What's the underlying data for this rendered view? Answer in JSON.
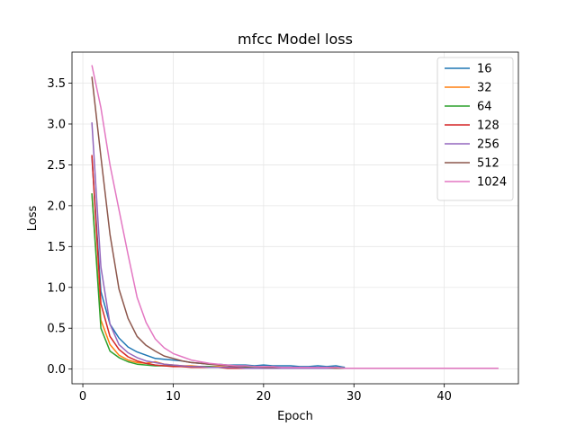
{
  "chart_data": {
    "type": "line",
    "title": "mfcc Model loss",
    "xlabel": "Epoch",
    "ylabel": "Loss",
    "xlim": [
      -1.2,
      48.2
    ],
    "ylim": [
      -0.18,
      3.88
    ],
    "xticks": [
      0,
      10,
      20,
      30,
      40
    ],
    "yticks": [
      0.0,
      0.5,
      1.0,
      1.5,
      2.0,
      2.5,
      3.0,
      3.5
    ],
    "xtick_labels": [
      "0",
      "10",
      "20",
      "30",
      "40"
    ],
    "ytick_labels": [
      "0.0",
      "0.5",
      "1.0",
      "1.5",
      "2.0",
      "2.5",
      "3.0",
      "3.5"
    ],
    "grid": true,
    "legend_position": "top-right",
    "series": [
      {
        "name": "16",
        "color": "#1f77b4",
        "x": [
          1,
          2,
          3,
          4,
          5,
          6,
          7,
          8,
          9,
          10,
          11,
          12,
          13,
          14,
          15,
          16,
          17,
          18,
          19,
          20,
          21,
          22,
          23,
          24,
          25,
          26,
          27,
          28,
          29
        ],
        "y": [
          2.6,
          0.95,
          0.55,
          0.38,
          0.27,
          0.21,
          0.17,
          0.13,
          0.12,
          0.11,
          0.1,
          0.08,
          0.07,
          0.06,
          0.06,
          0.05,
          0.05,
          0.05,
          0.04,
          0.05,
          0.04,
          0.04,
          0.04,
          0.03,
          0.03,
          0.04,
          0.03,
          0.04,
          0.02
        ]
      },
      {
        "name": "32",
        "color": "#ff7f0e",
        "x": [
          1,
          2,
          3,
          4,
          5,
          6,
          7,
          8,
          9,
          10,
          11,
          12,
          13,
          14,
          15,
          16,
          17,
          18,
          19,
          20,
          21,
          22,
          23,
          24,
          25,
          26,
          27,
          28,
          29
        ],
        "y": [
          2.15,
          0.6,
          0.3,
          0.17,
          0.11,
          0.08,
          0.07,
          0.09,
          0.06,
          0.05,
          0.04,
          0.04,
          0.03,
          0.03,
          0.03,
          0.02,
          0.02,
          0.02,
          0.02,
          0.02,
          0.02,
          0.02,
          0.02,
          0.02,
          0.02,
          0.02,
          0.02,
          0.02,
          0.01
        ]
      },
      {
        "name": "64",
        "color": "#2ca02c",
        "x": [
          1,
          2,
          3,
          4,
          5,
          6,
          7,
          8,
          9,
          10,
          11,
          12,
          13,
          14,
          15,
          16,
          17,
          18,
          19,
          20,
          21,
          22,
          23,
          24,
          25
        ],
        "y": [
          2.15,
          0.5,
          0.22,
          0.14,
          0.09,
          0.06,
          0.05,
          0.04,
          0.04,
          0.04,
          0.03,
          0.03,
          0.03,
          0.03,
          0.02,
          0.02,
          0.02,
          0.02,
          0.02,
          0.02,
          0.01,
          0.01,
          0.01,
          0.01,
          0.01
        ]
      },
      {
        "name": "128",
        "color": "#d62728",
        "x": [
          1,
          2,
          3,
          4,
          5,
          6,
          7,
          8,
          9,
          10,
          11,
          12,
          13,
          14,
          15,
          16,
          17,
          18,
          19,
          20,
          21,
          22,
          23,
          24,
          25,
          26,
          27,
          28,
          29,
          30,
          31
        ],
        "y": [
          2.62,
          0.8,
          0.4,
          0.24,
          0.15,
          0.1,
          0.07,
          0.05,
          0.04,
          0.03,
          0.03,
          0.02,
          0.02,
          0.02,
          0.02,
          0.01,
          0.01,
          0.01,
          0.01,
          0.01,
          0.01,
          0.01,
          0.01,
          0.01,
          0.01,
          0.01,
          0.01,
          0.01,
          0.01,
          0.01,
          0.01
        ]
      },
      {
        "name": "256",
        "color": "#9467bd",
        "x": [
          1,
          2,
          3,
          4,
          5,
          6,
          7,
          8,
          9,
          10,
          11,
          12,
          13,
          14,
          15,
          16,
          17,
          18,
          19,
          20,
          21,
          22,
          23,
          24,
          25,
          26,
          27,
          28,
          29,
          30
        ],
        "y": [
          3.02,
          1.25,
          0.55,
          0.3,
          0.2,
          0.14,
          0.1,
          0.08,
          0.06,
          0.05,
          0.04,
          0.03,
          0.03,
          0.02,
          0.02,
          0.02,
          0.02,
          0.01,
          0.01,
          0.01,
          0.01,
          0.01,
          0.01,
          0.01,
          0.01,
          0.01,
          0.01,
          0.01,
          0.01,
          0.01
        ]
      },
      {
        "name": "512",
        "color": "#8c564b",
        "x": [
          1,
          2,
          3,
          4,
          5,
          6,
          7,
          8,
          9,
          10,
          11,
          12,
          13,
          14,
          15,
          16,
          17,
          18,
          19,
          20,
          21,
          22,
          23,
          24,
          25,
          26,
          27,
          28,
          29,
          30
        ],
        "y": [
          3.58,
          2.6,
          1.65,
          0.98,
          0.62,
          0.4,
          0.29,
          0.22,
          0.16,
          0.13,
          0.1,
          0.08,
          0.07,
          0.06,
          0.05,
          0.04,
          0.03,
          0.03,
          0.03,
          0.02,
          0.02,
          0.02,
          0.02,
          0.02,
          0.02,
          0.02,
          0.02,
          0.01,
          0.01,
          0.01
        ]
      },
      {
        "name": "1024",
        "color": "#e377c2",
        "x": [
          1,
          2,
          3,
          4,
          5,
          6,
          7,
          8,
          9,
          10,
          11,
          12,
          13,
          14,
          15,
          16,
          17,
          18,
          19,
          20,
          21,
          22,
          23,
          24,
          25,
          26,
          27,
          28,
          29,
          30,
          31,
          32,
          33,
          34,
          35,
          36,
          37,
          38,
          39,
          40,
          41,
          42,
          43,
          44,
          45,
          46
        ],
        "y": [
          3.72,
          3.2,
          2.5,
          1.95,
          1.4,
          0.88,
          0.57,
          0.37,
          0.26,
          0.19,
          0.15,
          0.11,
          0.09,
          0.07,
          0.06,
          0.05,
          0.04,
          0.04,
          0.03,
          0.03,
          0.03,
          0.02,
          0.02,
          0.02,
          0.02,
          0.02,
          0.02,
          0.02,
          0.01,
          0.01,
          0.01,
          0.01,
          0.01,
          0.01,
          0.01,
          0.01,
          0.01,
          0.01,
          0.01,
          0.01,
          0.01,
          0.01,
          0.01,
          0.01,
          0.01,
          0.01
        ]
      }
    ]
  }
}
